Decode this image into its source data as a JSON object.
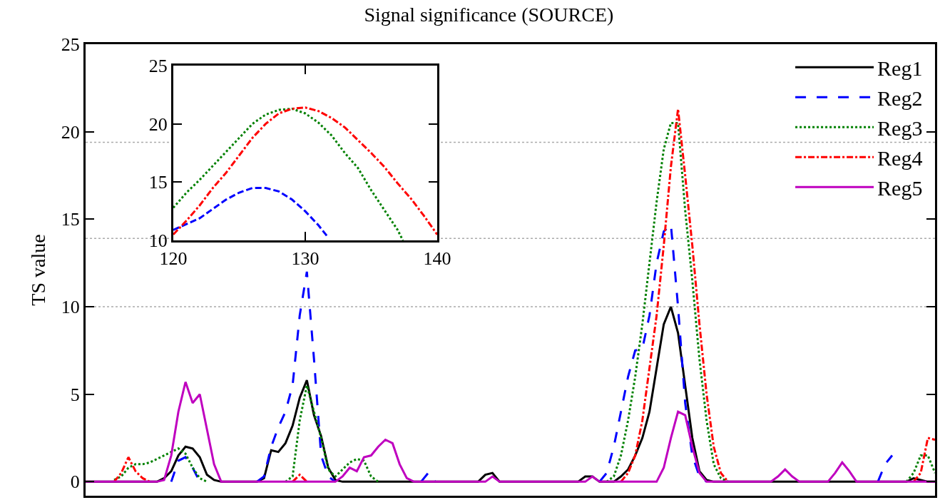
{
  "chart_data": [
    {
      "type": "line",
      "title": "Signal significance (SOURCE)",
      "ylabel": "TS value",
      "categories": [
        null,
        null,
        null,
        null,
        null,
        null,
        null,
        null,
        null,
        null,
        null,
        null,
        null,
        null,
        null,
        null,
        null,
        null,
        null,
        null,
        null,
        null,
        null,
        null,
        null,
        null,
        null,
        null,
        null,
        null,
        null,
        null,
        null,
        null,
        null,
        null,
        null,
        null,
        null,
        null,
        null,
        null,
        null,
        null,
        null,
        null,
        null,
        null,
        null,
        null,
        null,
        null,
        null,
        null,
        null,
        null,
        null,
        null,
        null,
        null,
        null,
        null,
        null,
        null,
        null,
        null,
        null,
        null,
        null,
        null,
        null,
        null,
        null,
        null,
        null,
        null,
        null,
        null,
        null,
        null,
        null,
        null,
        null,
        null,
        null,
        null,
        null,
        null,
        null,
        null,
        null,
        null,
        null,
        null,
        null,
        null,
        null,
        null,
        null,
        null,
        null,
        null,
        null,
        null,
        null,
        null,
        null,
        null,
        null,
        null,
        null,
        null,
        null,
        null,
        null,
        null,
        null,
        null,
        null,
        null
      ],
      "series": [
        {
          "name": "Reg1",
          "color": "#000000",
          "line_style": "solid",
          "values": [
            0,
            0,
            0,
            0,
            0,
            0,
            0,
            0,
            0,
            0,
            0,
            0.2,
            0.6,
            1.5,
            2.0,
            1.9,
            1.4,
            0.4,
            0.1,
            0,
            0,
            0,
            0,
            0,
            0,
            0.2,
            1.8,
            1.7,
            2.2,
            3.2,
            4.8,
            5.8,
            3.8,
            2.6,
            0.8,
            0.1,
            0,
            0,
            0,
            0,
            0,
            0,
            0,
            0,
            0,
            0,
            0,
            0,
            0,
            0,
            0,
            0,
            0,
            0,
            0,
            0,
            0.4,
            0.5,
            0,
            0,
            0,
            0,
            0,
            0,
            0,
            0,
            0,
            0,
            0,
            0,
            0.3,
            0.3,
            0,
            0,
            0,
            0.3,
            0.7,
            1.5,
            2.5,
            4.0,
            6.5,
            9.0,
            10.0,
            8.5,
            5.5,
            2.5,
            0.6,
            0.1,
            0,
            0,
            0,
            0,
            0,
            0,
            0,
            0,
            0,
            0,
            0,
            0,
            0,
            0,
            0,
            0,
            0,
            0,
            0,
            0,
            0,
            0,
            0,
            0,
            0,
            0,
            0,
            0,
            0.2,
            0.1,
            0,
            0
          ]
        },
        {
          "name": "Reg2",
          "color": "#0000ff",
          "line_style": "dashed",
          "values": [
            null,
            null,
            null,
            null,
            null,
            null,
            null,
            null,
            null,
            null,
            null,
            null,
            0,
            1.2,
            1.4,
            0.8,
            0,
            null,
            null,
            null,
            null,
            null,
            null,
            null,
            0,
            0.3,
            2.0,
            3.1,
            4.0,
            5.5,
            9.5,
            12.0,
            7.0,
            1.5,
            0.3,
            0,
            null,
            null,
            null,
            null,
            null,
            null,
            null,
            null,
            null,
            null,
            null,
            0,
            0.5,
            0,
            null,
            null,
            null,
            null,
            null,
            null,
            null,
            null,
            null,
            null,
            null,
            null,
            null,
            null,
            null,
            null,
            null,
            null,
            null,
            null,
            null,
            null,
            0,
            0.5,
            2.0,
            4.0,
            6.0,
            7.5,
            7.6,
            9.5,
            12.5,
            14.3,
            14.7,
            10.0,
            4.5,
            1.5,
            0.3,
            0,
            null,
            null,
            null,
            null,
            null,
            null,
            null,
            null,
            null,
            null,
            null,
            null,
            null,
            null,
            null,
            null,
            null,
            null,
            null,
            null,
            null,
            null,
            null,
            0,
            1.0,
            1.5,
            null,
            null,
            null,
            null,
            null,
            null
          ]
        },
        {
          "name": "Reg3",
          "color": "#008000",
          "line_style": "dotted",
          "values": [
            null,
            null,
            null,
            null,
            0.1,
            0.3,
            0.8,
            1.0,
            1.0,
            1.1,
            1.3,
            1.5,
            1.7,
            1.9,
            1.6,
            0.8,
            0.2,
            0,
            null,
            null,
            null,
            null,
            null,
            null,
            null,
            null,
            null,
            null,
            0,
            0.3,
            3.5,
            5.5,
            4.0,
            2.5,
            0.7,
            0.3,
            0.7,
            1.1,
            1.3,
            1.2,
            0.3,
            0,
            null,
            null,
            null,
            null,
            null,
            null,
            null,
            null,
            null,
            null,
            null,
            null,
            null,
            null,
            null,
            null,
            null,
            null,
            null,
            null,
            null,
            null,
            null,
            null,
            null,
            null,
            null,
            null,
            null,
            null,
            null,
            0,
            0.3,
            1.5,
            3.5,
            6.0,
            9.0,
            12.5,
            16.0,
            19.0,
            20.5,
            20.5,
            15.5,
            11.5,
            7.0,
            3.5,
            1.0,
            0.2,
            0,
            null,
            null,
            null,
            null,
            null,
            null,
            null,
            null,
            null,
            null,
            null,
            null,
            null,
            null,
            null,
            null,
            null,
            null,
            null,
            null,
            null,
            null,
            null,
            null,
            0,
            0.5,
            1.5,
            1.5,
            0.5
          ]
        },
        {
          "name": "Reg4",
          "color": "#ff0000",
          "line_style": "dashdot",
          "values": [
            null,
            null,
            null,
            null,
            0,
            0.5,
            1.4,
            0.6,
            0.2,
            0,
            null,
            null,
            null,
            null,
            null,
            null,
            null,
            null,
            null,
            null,
            null,
            null,
            null,
            null,
            null,
            null,
            null,
            null,
            null,
            0,
            0.4,
            0,
            null,
            null,
            null,
            null,
            null,
            null,
            null,
            null,
            null,
            null,
            null,
            null,
            null,
            null,
            null,
            null,
            null,
            null,
            null,
            null,
            null,
            null,
            null,
            null,
            null,
            null,
            null,
            null,
            null,
            null,
            null,
            null,
            null,
            null,
            null,
            null,
            null,
            null,
            null,
            null,
            null,
            null,
            null,
            0,
            0.5,
            1.5,
            3.5,
            6.5,
            9.5,
            13.5,
            18.0,
            21.3,
            17.5,
            13.5,
            9.0,
            5.0,
            2.0,
            0.5,
            0,
            null,
            null,
            null,
            null,
            null,
            null,
            null,
            null,
            null,
            null,
            null,
            null,
            null,
            null,
            null,
            null,
            null,
            null,
            null,
            null,
            null,
            null,
            null,
            null,
            null,
            0,
            0.5,
            2.5,
            2.4
          ]
        },
        {
          "name": "Reg5",
          "color": "#bf00bf",
          "line_style": "solid",
          "values": [
            0,
            0,
            0,
            0,
            0,
            0,
            0,
            0,
            0,
            0,
            0,
            0.1,
            1.5,
            4.0,
            5.7,
            4.5,
            5.0,
            3.0,
            1.0,
            0,
            0,
            0,
            0,
            0,
            0,
            0,
            0,
            0,
            0,
            0,
            0,
            0,
            0,
            0,
            0,
            0,
            0.3,
            0.8,
            0.6,
            1.4,
            1.5,
            2.0,
            2.4,
            2.2,
            1.0,
            0.2,
            0,
            0,
            0,
            0,
            0,
            0,
            0,
            0,
            0,
            0,
            0,
            0.3,
            0,
            0,
            0,
            0,
            0,
            0,
            0,
            0,
            0,
            0,
            0,
            0,
            0,
            0.3,
            0,
            0,
            0,
            0,
            0,
            0,
            0,
            0,
            0,
            0.8,
            2.5,
            4.0,
            3.8,
            2.0,
            0.5,
            0,
            0,
            0,
            0,
            0,
            0,
            0,
            0,
            0,
            0,
            0.3,
            0.7,
            0.3,
            0,
            0,
            0,
            0,
            0,
            0.5,
            1.1,
            0.6,
            0,
            0,
            0,
            0,
            0,
            0,
            0,
            0,
            0,
            0,
            0,
            0
          ]
        }
      ],
      "ylim": [
        -0.8,
        25
      ],
      "yticks": [
        0,
        5,
        10,
        15,
        20,
        25
      ],
      "tick_labels": "y",
      "grid": false,
      "legend": "top right",
      "marker": "none",
      "ref_lines": [
        {
          "axis": "y",
          "value": 10,
          "color": "#aaaaaa",
          "line_style": "dotted"
        },
        {
          "axis": "y",
          "value": 13.9,
          "color": "#aaaaaa",
          "line_style": "dotted"
        },
        {
          "axis": "y",
          "value": 19.4,
          "color": "#aaaaaa",
          "line_style": "dotted"
        }
      ]
    },
    {
      "type": "line",
      "series": [
        {
          "color": "#0000ff",
          "line_style": "dashed",
          "x": [
            120,
            121,
            122,
            123,
            124,
            125,
            126,
            127,
            128,
            129,
            130,
            131,
            131.7
          ],
          "values": [
            10.9,
            11.4,
            11.9,
            12.7,
            13.5,
            14.1,
            14.5,
            14.5,
            14.2,
            13.5,
            12.5,
            11.3,
            10.3
          ]
        },
        {
          "color": "#008000",
          "line_style": "dotted",
          "x": [
            120,
            121,
            122,
            123,
            124,
            125,
            126,
            127,
            128,
            129,
            130,
            131,
            132,
            133,
            134,
            135,
            136,
            137,
            137.4
          ],
          "values": [
            12.8,
            14.1,
            15.2,
            16.4,
            17.6,
            18.8,
            20.0,
            20.8,
            21.2,
            21.3,
            20.9,
            20.1,
            19.0,
            17.5,
            16.2,
            14.3,
            12.6,
            10.9,
            10.0
          ]
        },
        {
          "color": "#ff0000",
          "line_style": "dashdot",
          "x": [
            120,
            121,
            122,
            123,
            124,
            125,
            126,
            127,
            128,
            129,
            130,
            131,
            132,
            133,
            134,
            135,
            136,
            137,
            138,
            139,
            140
          ],
          "values": [
            10.5,
            11.7,
            13.0,
            14.5,
            15.8,
            17.3,
            18.8,
            20.0,
            20.9,
            21.3,
            21.4,
            21.1,
            20.5,
            19.7,
            18.6,
            17.5,
            16.3,
            14.9,
            13.6,
            12.1,
            10.5
          ]
        }
      ],
      "xlim": [
        120,
        140
      ],
      "xticks": [
        120,
        130,
        140
      ],
      "ylim": [
        10,
        25
      ],
      "yticks": [
        10,
        15,
        20,
        25
      ],
      "grid": false,
      "legend": false,
      "marker": "none"
    }
  ]
}
